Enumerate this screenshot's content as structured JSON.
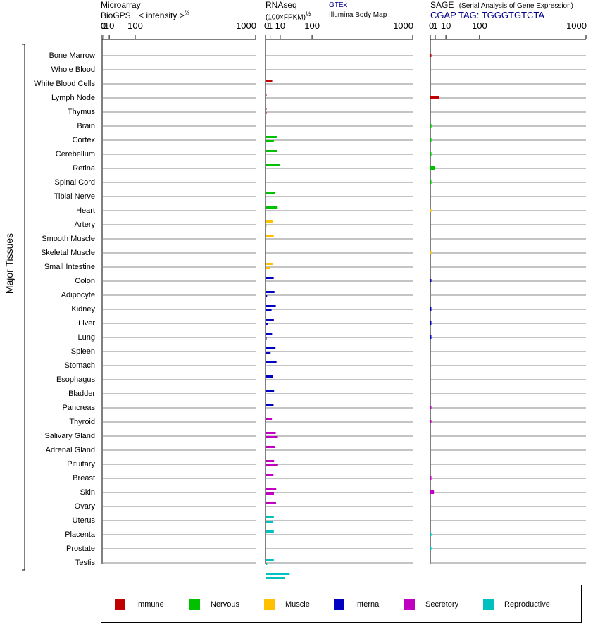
{
  "headers": {
    "microarray_line1": "Microarray",
    "microarray_line2": "BioGPS",
    "intensity": "< intensity >",
    "intensity_exp": "⅔",
    "rnaseq_line1": "RNAseq",
    "rnaseq_line2": "(100×FPKM)",
    "rnaseq_exp": "½",
    "gtex": "GTEx",
    "illumina": "Illumina Body Map",
    "sage_line1": "SAGE",
    "sage_desc": "(Serial Analysis of Gene Expression)",
    "sage_tag": "CGAP TAG: TGGGTGTCTA"
  },
  "side_label": "Major Tissues",
  "legend": [
    {
      "label": "Immune",
      "color": "#c00000"
    },
    {
      "label": "Nervous",
      "color": "#00c000"
    },
    {
      "label": "Muscle",
      "color": "#ffc000"
    },
    {
      "label": "Internal",
      "color": "#0000c0"
    },
    {
      "label": "Secretory",
      "color": "#c000c0"
    },
    {
      "label": "Reproductive",
      "color": "#00c0c0"
    }
  ],
  "chart_data": {
    "type": "bar",
    "axis_ticks": [
      "0",
      "1",
      "10",
      "100",
      "1000"
    ],
    "scale": "power",
    "microarray_exponent": 0.6667,
    "rnaseq_exponent": 0.5,
    "sage_exponent": 0.5,
    "panels": [
      "Microarray BioGPS",
      "RNAseq",
      "SAGE"
    ],
    "rnaseq_series": [
      "GTEx",
      "Illumina Body Map"
    ],
    "categories": [
      "Bone Marrow",
      "Whole Blood",
      "White Blood Cells",
      "Lymph Node",
      "Thymus",
      "Brain",
      "Cortex",
      "Cerebellum",
      "Retina",
      "Spinal Cord",
      "Tibial Nerve",
      "Heart",
      "Artery",
      "Smooth Muscle",
      "Skeletal Muscle",
      "Small Intestine",
      "Colon",
      "Adipocyte",
      "Kidney",
      "Liver",
      "Lung",
      "Spleen",
      "Stomach",
      "Esophagus",
      "Bladder",
      "Pancreas",
      "Thyroid",
      "Salivary Gland",
      "Adrenal Gland",
      "Pituitary",
      "Breast",
      "Skin",
      "Ovary",
      "Uterus",
      "Placenta",
      "Prostate",
      "Testis"
    ],
    "systems": [
      "Immune",
      "Immune",
      "Immune",
      "Immune",
      "Immune",
      "Nervous",
      "Nervous",
      "Nervous",
      "Nervous",
      "Nervous",
      "Nervous",
      "Muscle",
      "Muscle",
      "Muscle",
      "Muscle",
      "Internal",
      "Internal",
      "Internal",
      "Internal",
      "Internal",
      "Internal",
      "Internal",
      "Internal",
      "Internal",
      "Internal",
      "Secretory",
      "Secretory",
      "Secretory",
      "Secretory",
      "Secretory",
      "Secretory",
      "Secretory",
      "Reproductive",
      "Reproductive",
      "Reproductive",
      "Reproductive",
      "Reproductive"
    ],
    "microarray": [
      null,
      null,
      null,
      null,
      null,
      null,
      null,
      null,
      null,
      null,
      null,
      null,
      null,
      null,
      null,
      null,
      null,
      null,
      null,
      null,
      null,
      null,
      null,
      null,
      null,
      null,
      null,
      null,
      null,
      null,
      null,
      null,
      null,
      null,
      null,
      null,
      null
    ],
    "rnaseq_gtex": [
      null,
      2.1,
      0.005,
      0.005,
      null,
      5.8,
      6.0,
      9.5,
      null,
      4.5,
      6.8,
      2.7,
      3.1,
      null,
      2.5,
      3.1,
      3.7,
      4.9,
      3.2,
      2.0,
      4.6,
      5.6,
      2.7,
      3.4,
      3.0,
      1.9,
      4.8,
      4.0,
      3.4,
      2.9,
      5.3,
      5.1,
      3.2,
      3.2,
      null,
      3.2,
      27.0
    ],
    "rnaseq_ibm": [
      null,
      null,
      null,
      0.005,
      null,
      3.2,
      null,
      null,
      null,
      null,
      null,
      0.01,
      null,
      null,
      1.1,
      null,
      0.12,
      1.7,
      0.22,
      0.01,
      1.2,
      null,
      null,
      null,
      null,
      null,
      7.0,
      null,
      7.2,
      null,
      3.3,
      null,
      2.8,
      null,
      null,
      0.12,
      17.0
    ],
    "sage": [
      0.02,
      null,
      null,
      3.2,
      null,
      0.01,
      0.01,
      0.01,
      1.0,
      0.01,
      null,
      0.002,
      null,
      null,
      0.002,
      null,
      0.02,
      null,
      0.02,
      0.02,
      0.02,
      null,
      null,
      null,
      null,
      0.01,
      0.01,
      null,
      null,
      null,
      0.02,
      0.55,
      null,
      null,
      0.01,
      0.01,
      null
    ]
  }
}
